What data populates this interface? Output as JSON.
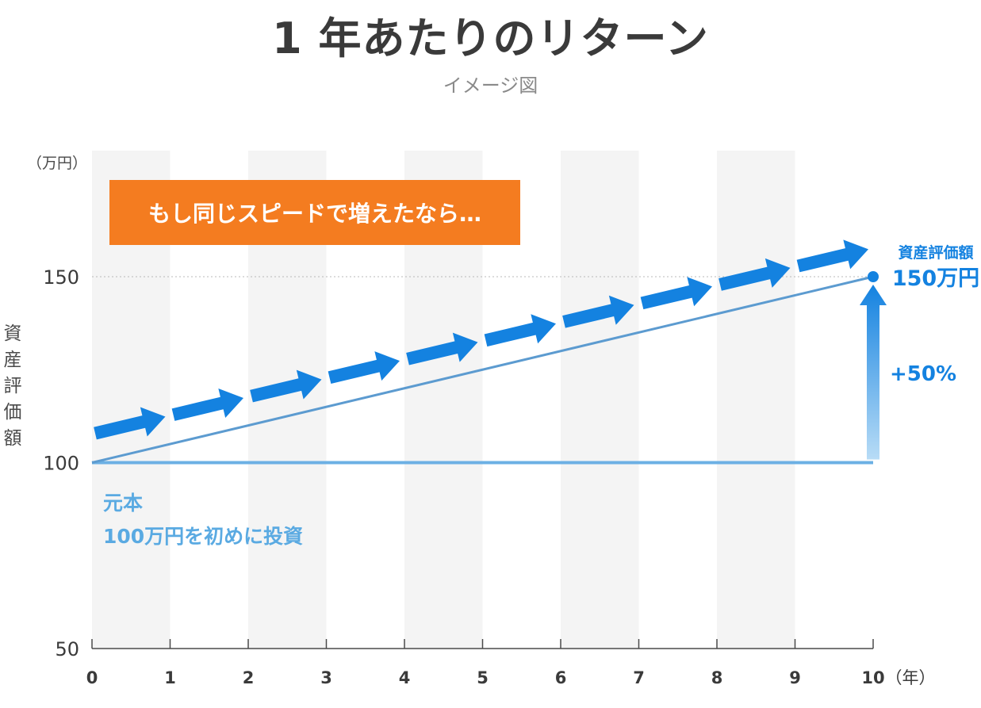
{
  "title": "1 年あたりのリターン",
  "subtitle": "イメージ図",
  "callout": "もし同じスピードで増えたなら…",
  "principal_label_1": "元本",
  "principal_label_2": "100万円を初めに投資",
  "end_label_1": "資産評価額",
  "end_label_2": "150万円",
  "growth_label": "+50%",
  "colors": {
    "accent_orange": "#f47c20",
    "arrow_blue": "#1482e0",
    "line_blue": "#5c9bd0",
    "baseline_blue": "#6cb0e4",
    "band_gray": "#f4f4f4",
    "text_dark": "#3a3a3a"
  },
  "chart_data": {
    "type": "line",
    "title": "1 年あたりのリターン",
    "subtitle": "イメージ図",
    "xlabel": "（年）",
    "ylabel": "資産評価額",
    "yunit": "（万円）",
    "x_ticks": [
      0,
      1,
      2,
      3,
      4,
      5,
      6,
      7,
      8,
      9,
      10
    ],
    "y_ticks": [
      50,
      100,
      150
    ],
    "xlim": [
      0,
      10
    ],
    "ylim": [
      50,
      160
    ],
    "gridline_y": 150,
    "series": [
      {
        "name": "元本",
        "x": [
          0,
          10
        ],
        "y": [
          100,
          100
        ]
      },
      {
        "x": [
          0,
          10
        ],
        "y": [
          100,
          150
        ]
      }
    ],
    "growth_arrows": [
      {
        "x0": 0,
        "x1": 1
      },
      {
        "x0": 1,
        "x1": 2
      },
      {
        "x0": 2,
        "x1": 3
      },
      {
        "x0": 3,
        "x1": 4
      },
      {
        "x0": 4,
        "x1": 5
      },
      {
        "x0": 5,
        "x1": 6
      },
      {
        "x0": 6,
        "x1": 7
      },
      {
        "x0": 7,
        "x1": 8
      },
      {
        "x0": 8,
        "x1": 9
      },
      {
        "x0": 9,
        "x1": 10
      }
    ],
    "end_point": {
      "x": 10,
      "y": 150
    },
    "growth_percent": 50
  }
}
